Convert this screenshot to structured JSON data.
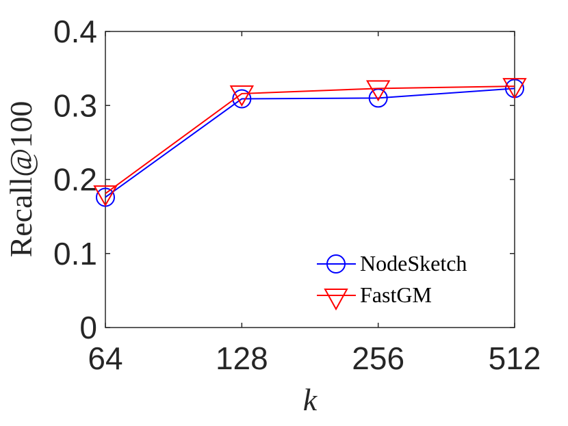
{
  "chart_data": {
    "type": "line",
    "x": [
      "64",
      "128",
      "256",
      "512"
    ],
    "xlabel": "k",
    "ylabel": "Recall@100",
    "ylim": [
      0,
      0.4
    ],
    "yticks": [
      "0",
      "0.1",
      "0.2",
      "0.3",
      "0.4"
    ],
    "grid": false,
    "legend_position": "bottom-right",
    "series": [
      {
        "name": "NodeSketch",
        "marker": "circle",
        "color": "#0000ff",
        "values": [
          0.176,
          0.309,
          0.31,
          0.323
        ]
      },
      {
        "name": "FastGM",
        "marker": "triangle-down",
        "color": "#ff0000",
        "values": [
          0.181,
          0.316,
          0.323,
          0.326
        ]
      }
    ]
  }
}
